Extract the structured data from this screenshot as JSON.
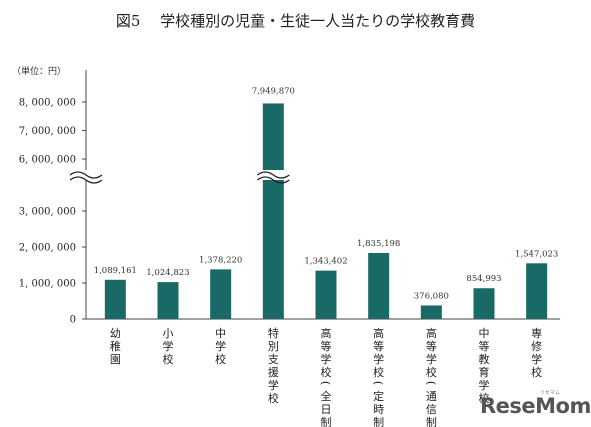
{
  "chart_data": {
    "type": "bar",
    "title": "図5　 学校種別の児童・生徒一人当たりの学校教育費",
    "unit_label": "（単位：円）",
    "categories": [
      "幼稚園",
      "小学校",
      "中学校",
      "特別支援学校",
      "高等学校（全日制）",
      "高等学校（定時制）",
      "高等学校（通信制）",
      "中等教育学校",
      "専修学校"
    ],
    "values": [
      1089161,
      1024823,
      1378220,
      7949870,
      1343402,
      1835198,
      376080,
      854993,
      1547023
    ],
    "value_labels": [
      "1,089,161",
      "1,024,823",
      "1,378,220",
      "7,949,870",
      "1,343,402",
      "1,835,198",
      "376,080",
      "854,993",
      "1,547,023"
    ],
    "yticks_lower": [
      0,
      1000000,
      2000000,
      3000000
    ],
    "yticks_upper": [
      6000000,
      7000000,
      8000000
    ],
    "ytick_labels_lower": [
      "0",
      "1, 000, 000",
      "2, 000, 000",
      "3, 000, 000"
    ],
    "ytick_labels_upper": [
      "6, 000, 000",
      "7, 000, 000",
      "8, 000, 000"
    ],
    "axis_break": [
      3500000,
      6000000
    ],
    "ylim": [
      0,
      8500000
    ],
    "bar_color": "#196a66",
    "grid": false,
    "xlabel": "",
    "ylabel": ""
  },
  "watermark": {
    "text": "ReseMom",
    "kana": "リセマム"
  }
}
